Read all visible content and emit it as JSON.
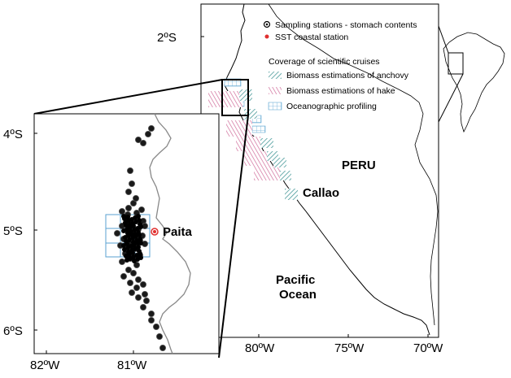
{
  "legend": {
    "sampling": "Sampling stations  - stomach contents",
    "sst": "SST coastal station",
    "coverage_title": "Coverage of scientific cruises",
    "anchovy": "Biomass estimations of anchovy",
    "hake": "Biomass estimations of hake",
    "oceano": "Oceanographic profiling"
  },
  "places": {
    "peru": "PERU",
    "callao": "Callao",
    "paita": "Paita",
    "pacific": "Pacific",
    "ocean": "Ocean"
  },
  "main_axis": {
    "lat": "2ºS",
    "lon": [
      "80ºW",
      "75ºW",
      "70ºW"
    ]
  },
  "inset_axis": {
    "lat": [
      "4ºS",
      "5ºS",
      "6ºS"
    ],
    "lon": [
      "82ºW",
      "81ºW"
    ]
  },
  "colors": {
    "anchovy": "#4a9a9a",
    "hake": "#d06c9a",
    "oceano": "#6aaed6",
    "sst": "#e03030",
    "coast": "#000000",
    "inset_coast": "#888888"
  }
}
